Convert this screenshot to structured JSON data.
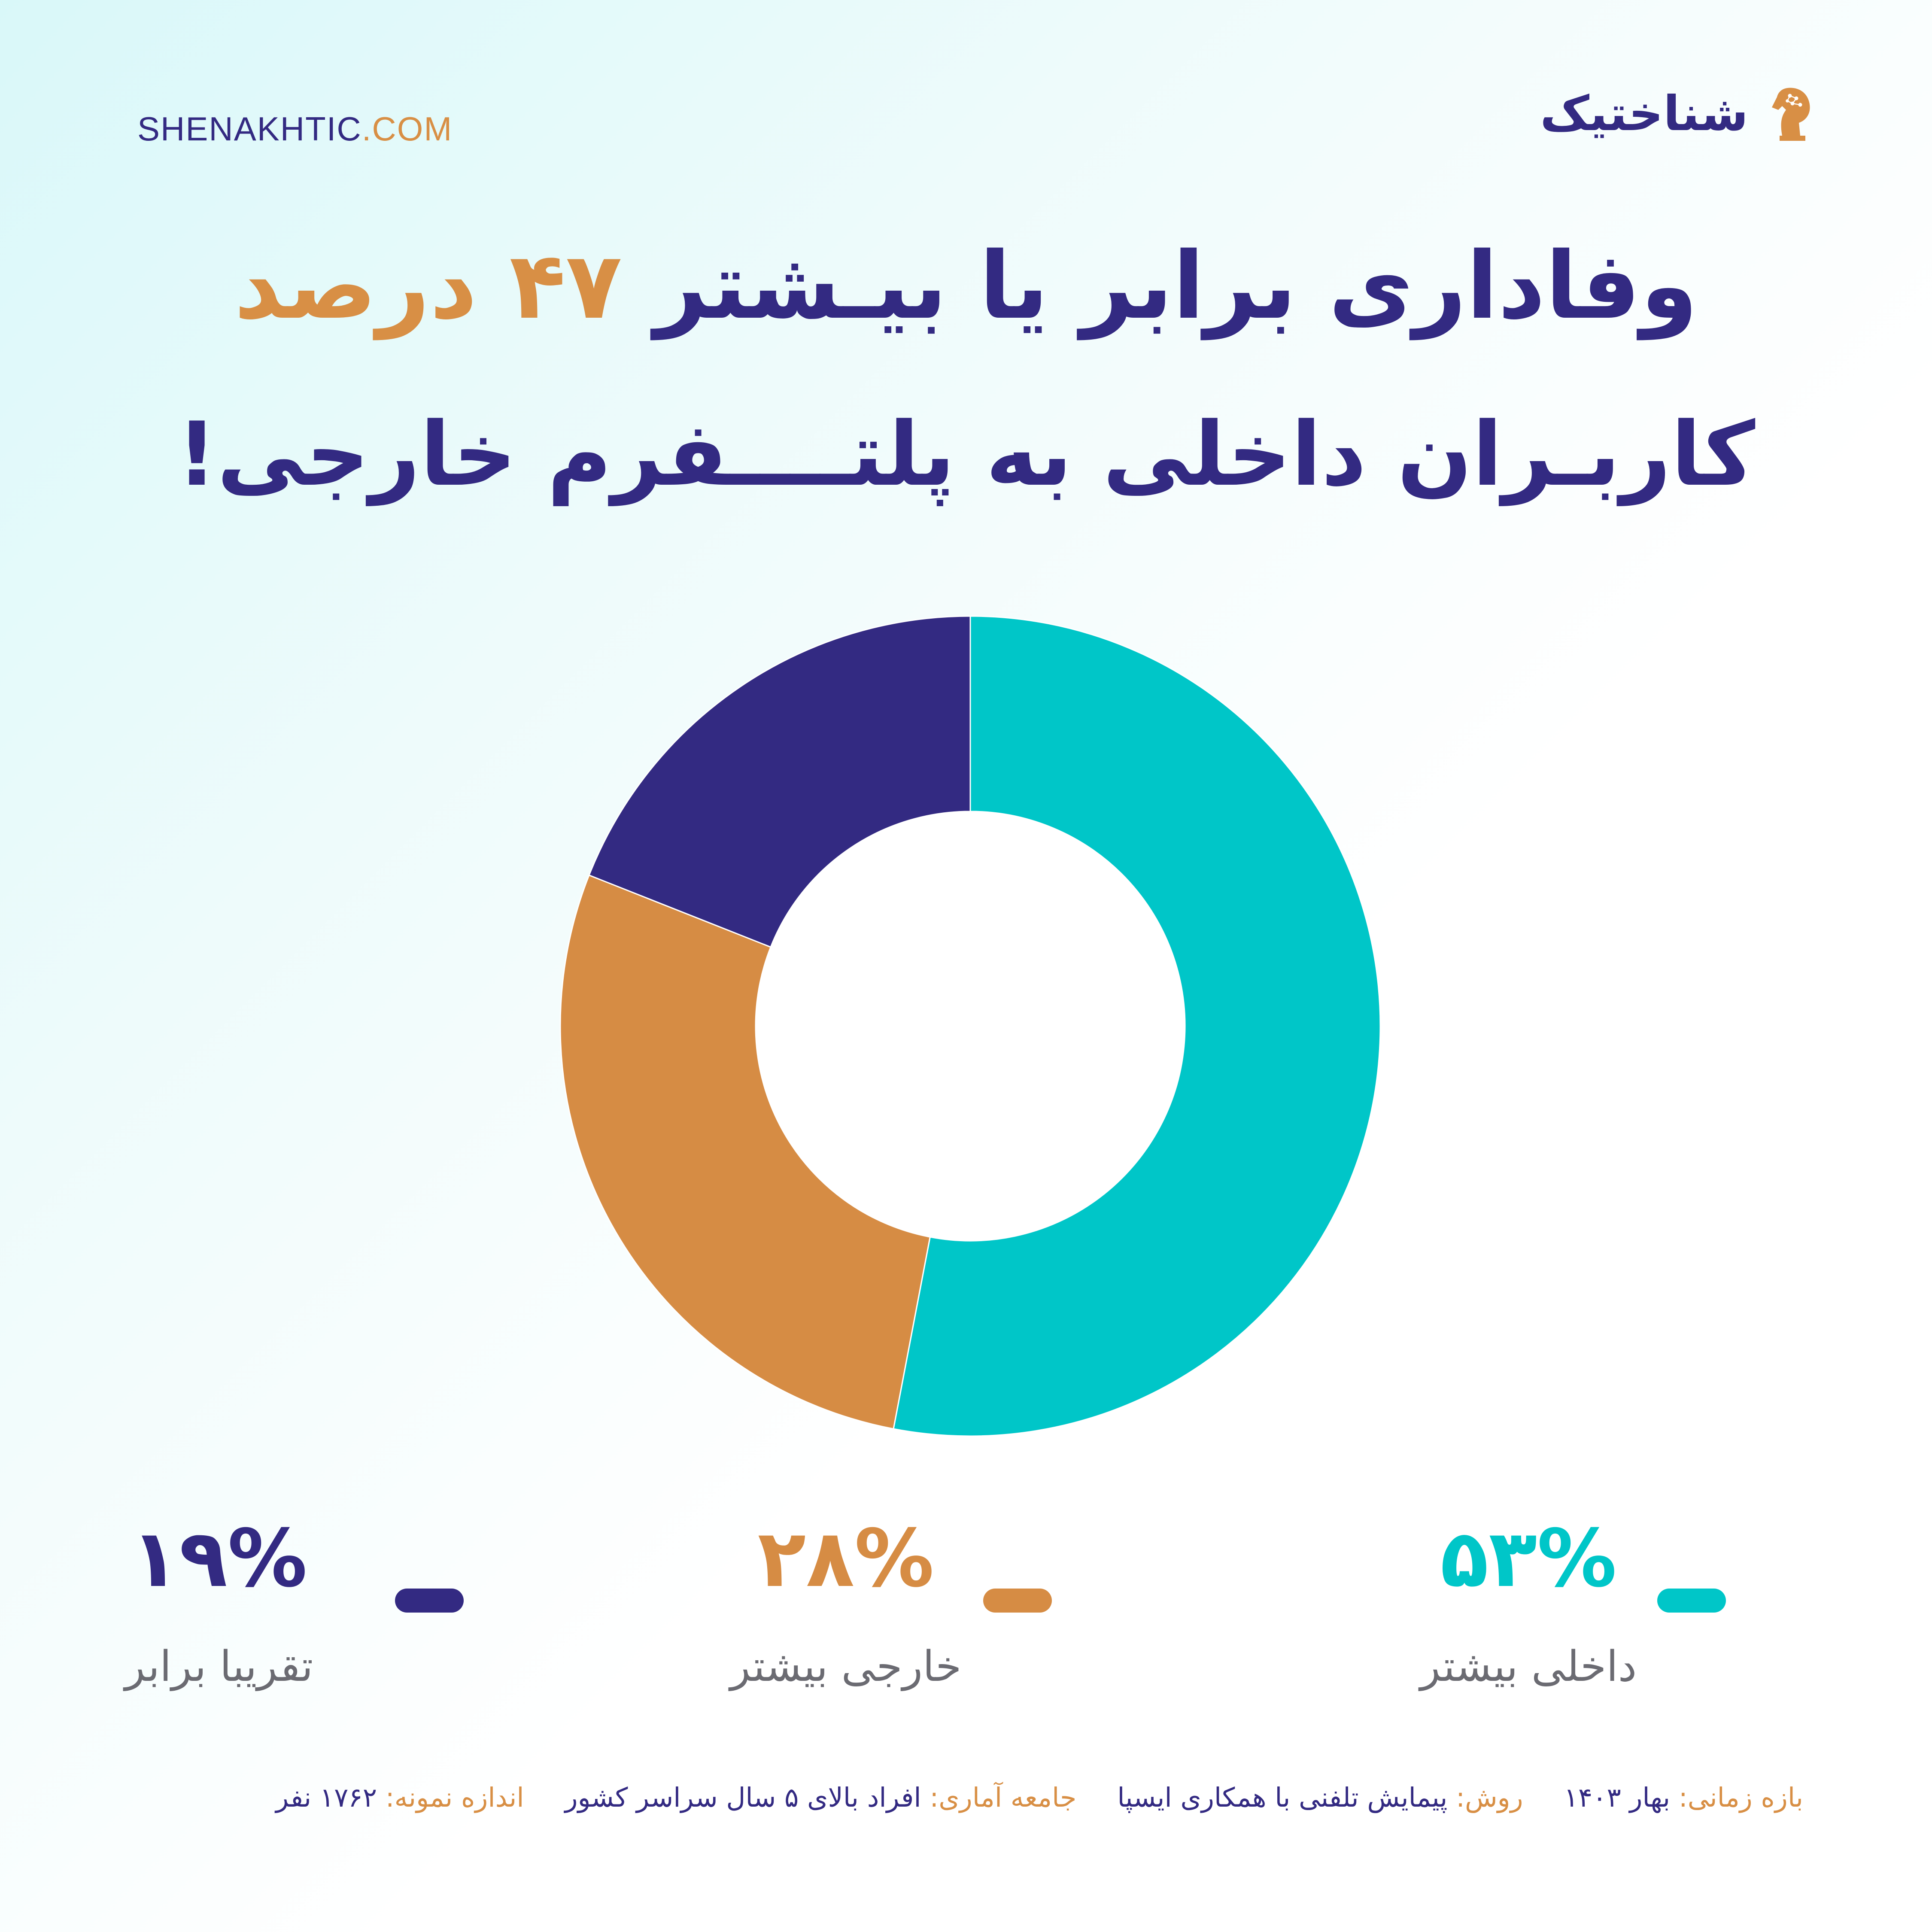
{
  "header": {
    "site_main": "SHENAKHTIC",
    "site_tld": ".COM",
    "brand_name": "شناختیک"
  },
  "headline": {
    "line1_before": "وفاداری برابر یا بیـشتر",
    "line1_number": "۴۷",
    "line1_unit": "درصد",
    "line2": "کاربـران داخلی به پلتــــفرم خارجی!"
  },
  "chart_data": {
    "type": "pie",
    "donut": true,
    "start_angle": "12 o'clock",
    "direction": "clockwise",
    "categories": [
      "داخلی بیشتر",
      "خارجی بیشتر",
      "تقریبا برابر"
    ],
    "values": [
      53,
      28,
      19
    ],
    "value_labels": [
      "۵۳%",
      "۲۸%",
      "۱۹%"
    ],
    "colors": [
      "#00c6c8",
      "#d68c44",
      "#332a82"
    ]
  },
  "footer": {
    "period_key": "بازه زمانی:",
    "period_value": "بهار ۱۴۰۳",
    "method_key": "روش:",
    "method_value": "پیمایش تلفنی با همکاری ایسپا",
    "population_key": "جامعه آماری:",
    "population_value": "افراد بالای ۵ سال سراسر کشور",
    "sample_key": "اندازه نمونه:",
    "sample_value": "۱۷۶۲ نفر"
  },
  "colors": {
    "navy": "#332a82",
    "accent": "#d88f45",
    "teal": "#00c6c8"
  }
}
